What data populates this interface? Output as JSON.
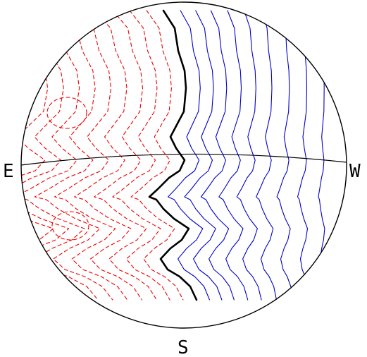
{
  "labels": {
    "east": "E",
    "west": "W",
    "south": "S"
  },
  "colors": {
    "positive": "#0000cc",
    "negative": "#ee0000",
    "zero": "#000000",
    "outline": "#000000"
  },
  "legend": {}
}
